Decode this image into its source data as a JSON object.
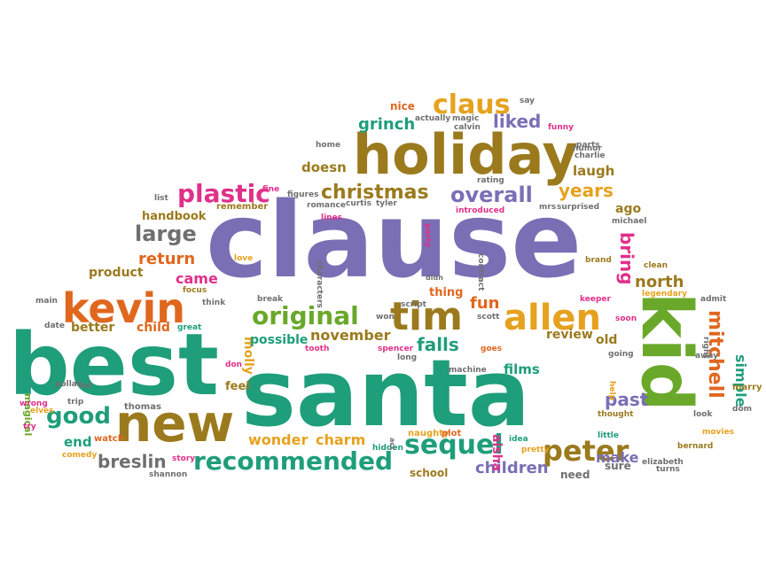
{
  "palette": {
    "purple": "#7a6fb5",
    "teal": "#1e9e7a",
    "olive": "#9b7a1e",
    "orange": "#e0671e",
    "pink": "#e0308a",
    "green": "#6aa82a",
    "gold": "#e6a21e",
    "gray": "#6f6f6f",
    "blue": "#2f8fb5"
  },
  "words": [
    {
      "text": "clause",
      "weight": 100,
      "color": "purple"
    },
    {
      "text": "santa",
      "weight": 95,
      "color": "teal"
    },
    {
      "text": "best",
      "weight": 90,
      "color": "teal"
    },
    {
      "text": "kid",
      "weight": 80,
      "color": "green"
    },
    {
      "text": "holiday",
      "weight": 62,
      "color": "olive"
    },
    {
      "text": "new",
      "weight": 60,
      "color": "olive"
    },
    {
      "text": "kevin",
      "weight": 50,
      "color": "orange"
    },
    {
      "text": "allen",
      "weight": 44,
      "color": "gold"
    },
    {
      "text": "tim",
      "weight": 44,
      "color": "olive"
    },
    {
      "text": "sequel",
      "weight": 34,
      "color": "teal"
    },
    {
      "text": "peter",
      "weight": 34,
      "color": "olive"
    },
    {
      "text": "recommended",
      "weight": 33,
      "color": "teal"
    },
    {
      "text": "original",
      "weight": 30,
      "color": "green"
    },
    {
      "text": "plastic",
      "weight": 30,
      "color": "pink"
    },
    {
      "text": "claus",
      "weight": 29,
      "color": "gold"
    },
    {
      "text": "good",
      "weight": 28,
      "color": "teal"
    },
    {
      "text": "christmas",
      "weight": 26,
      "color": "olive"
    },
    {
      "text": "overall",
      "weight": 26,
      "color": "purple"
    },
    {
      "text": "mitchell",
      "weight": 26,
      "color": "orange"
    },
    {
      "text": "large",
      "weight": 26,
      "color": "gray"
    },
    {
      "text": "years",
      "weight": 24,
      "color": "gold"
    },
    {
      "text": "bring",
      "weight": 23,
      "color": "pink"
    },
    {
      "text": "liked",
      "weight": 22,
      "color": "purple"
    },
    {
      "text": "breslin",
      "weight": 22,
      "color": "gray"
    },
    {
      "text": "north",
      "weight": 22,
      "color": "olive"
    },
    {
      "text": "falls",
      "weight": 21,
      "color": "teal"
    },
    {
      "text": "return",
      "weight": 21,
      "color": "orange"
    },
    {
      "text": "past",
      "weight": 21,
      "color": "purple"
    },
    {
      "text": "grinch",
      "weight": 19,
      "color": "teal"
    },
    {
      "text": "fun",
      "weight": 19,
      "color": "orange"
    },
    {
      "text": "children",
      "weight": 19,
      "color": "purple"
    },
    {
      "text": "wonder",
      "weight": 18,
      "color": "gold"
    },
    {
      "text": "charm",
      "weight": 18,
      "color": "gold"
    },
    {
      "text": "make",
      "weight": 18,
      "color": "purple"
    },
    {
      "text": "simple",
      "weight": 17,
      "color": "teal"
    },
    {
      "text": "november",
      "weight": 17,
      "color": "olive"
    },
    {
      "text": "aisha",
      "weight": 16,
      "color": "pink"
    },
    {
      "text": "doesn",
      "weight": 16,
      "color": "olive"
    },
    {
      "text": "laugh",
      "weight": 16,
      "color": "olive"
    },
    {
      "text": "came",
      "weight": 16,
      "color": "pink"
    },
    {
      "text": "end",
      "weight": 16,
      "color": "teal"
    },
    {
      "text": "molly",
      "weight": 15,
      "color": "gold"
    },
    {
      "text": "child",
      "weight": 15,
      "color": "orange"
    },
    {
      "text": "better",
      "weight": 15,
      "color": "olive"
    },
    {
      "text": "product",
      "weight": 15,
      "color": "olive"
    },
    {
      "text": "handbook",
      "weight": 15,
      "color": "olive"
    },
    {
      "text": "possible",
      "weight": 15,
      "color": "teal"
    },
    {
      "text": "films",
      "weight": 15,
      "color": "teal"
    },
    {
      "text": "review",
      "weight": 15,
      "color": "olive"
    },
    {
      "text": "old",
      "weight": 15,
      "color": "olive"
    },
    {
      "text": "ago",
      "weight": 14,
      "color": "olive"
    },
    {
      "text": "thing",
      "weight": 14,
      "color": "orange"
    },
    {
      "text": "school",
      "weight": 14,
      "color": "olive"
    },
    {
      "text": "feel",
      "weight": 14,
      "color": "olive"
    },
    {
      "text": "need",
      "weight": 14,
      "color": "gray"
    },
    {
      "text": "sure",
      "weight": 14,
      "color": "gray"
    },
    {
      "text": "nice",
      "weight": 13,
      "color": "orange"
    },
    {
      "text": "watch",
      "weight": 12,
      "color": "orange"
    },
    {
      "text": "remember",
      "weight": 12,
      "color": "olive"
    },
    {
      "text": "magical",
      "weight": 12,
      "color": "green"
    },
    {
      "text": "marry",
      "weight": 12,
      "color": "olive"
    },
    {
      "text": "thomas",
      "weight": 11,
      "color": "gray"
    },
    {
      "text": "naughty",
      "weight": 11,
      "color": "gold"
    },
    {
      "text": "plot",
      "weight": 11,
      "color": "orange"
    },
    {
      "text": "think",
      "weight": 11,
      "color": "gray"
    },
    {
      "text": "break",
      "weight": 11,
      "color": "gray"
    },
    {
      "text": "legendary",
      "weight": 11,
      "color": "gold"
    },
    {
      "text": "great",
      "weight": 11,
      "color": "teal"
    },
    {
      "text": "clean",
      "weight": 11,
      "color": "olive"
    },
    {
      "text": "brand",
      "weight": 11,
      "color": "olive"
    },
    {
      "text": "thought",
      "weight": 11,
      "color": "olive"
    },
    {
      "text": "bernard",
      "weight": 11,
      "color": "olive"
    },
    {
      "text": "pretty",
      "weight": 11,
      "color": "gold"
    },
    {
      "text": "turns",
      "weight": 11,
      "color": "gray"
    },
    {
      "text": "focus",
      "weight": 11,
      "color": "olive"
    },
    {
      "text": "comedy",
      "weight": 10,
      "color": "gold"
    },
    {
      "text": "story",
      "weight": 10,
      "color": "pink"
    },
    {
      "text": "shannon",
      "weight": 10,
      "color": "gray"
    },
    {
      "text": "hidden",
      "weight": 10,
      "color": "teal"
    },
    {
      "text": "little",
      "weight": 10,
      "color": "teal"
    },
    {
      "text": "movies",
      "weight": 10,
      "color": "gold"
    },
    {
      "text": "spencer",
      "weight": 10,
      "color": "pink"
    },
    {
      "text": "machine",
      "weight": 10,
      "color": "gray"
    },
    {
      "text": "idea",
      "weight": 10,
      "color": "teal"
    },
    {
      "text": "elizabeth",
      "weight": 10,
      "color": "gray"
    },
    {
      "text": "pollak",
      "weight": 10,
      "color": "gray"
    },
    {
      "text": "lot",
      "weight": 10,
      "color": "gray"
    },
    {
      "text": "trip",
      "weight": 10,
      "color": "gray"
    },
    {
      "text": "elves",
      "weight": 10,
      "color": "gold"
    },
    {
      "text": "try",
      "weight": 10,
      "color": "pink"
    },
    {
      "text": "wrong",
      "weight": 10,
      "color": "pink"
    },
    {
      "text": "main",
      "weight": 10,
      "color": "gray"
    },
    {
      "text": "date",
      "weight": 10,
      "color": "gray"
    },
    {
      "text": "love",
      "weight": 10,
      "color": "gold"
    },
    {
      "text": "don",
      "weight": 10,
      "color": "pink"
    },
    {
      "text": "tooth",
      "weight": 10,
      "color": "pink"
    },
    {
      "text": "long",
      "weight": 10,
      "color": "gray"
    },
    {
      "text": "won",
      "weight": 10,
      "color": "gray"
    },
    {
      "text": "scott",
      "weight": 10,
      "color": "gray"
    },
    {
      "text": "script",
      "weight": 10,
      "color": "gray"
    },
    {
      "text": "didn",
      "weight": 10,
      "color": "gray"
    },
    {
      "text": "act",
      "weight": 10,
      "color": "gray"
    },
    {
      "text": "goes",
      "weight": 10,
      "color": "orange"
    },
    {
      "text": "keeper",
      "weight": 10,
      "color": "pink"
    },
    {
      "text": "soon",
      "weight": 10,
      "color": "pink"
    },
    {
      "text": "admit",
      "weight": 10,
      "color": "gray"
    },
    {
      "text": "right",
      "weight": 10,
      "color": "gray"
    },
    {
      "text": "away",
      "weight": 10,
      "color": "gray"
    },
    {
      "text": "look",
      "weight": 10,
      "color": "gray"
    },
    {
      "text": "dom",
      "weight": 10,
      "color": "gray"
    },
    {
      "text": "going",
      "weight": 10,
      "color": "gray"
    },
    {
      "text": "help",
      "weight": 10,
      "color": "gold"
    },
    {
      "text": "fine",
      "weight": 10,
      "color": "pink"
    },
    {
      "text": "figures",
      "weight": 10,
      "color": "gray"
    },
    {
      "text": "romance",
      "weight": 10,
      "color": "gray"
    },
    {
      "text": "curtis",
      "weight": 10,
      "color": "gray"
    },
    {
      "text": "tyler",
      "weight": 10,
      "color": "gray"
    },
    {
      "text": "lines",
      "weight": 10,
      "color": "pink"
    },
    {
      "text": "characters",
      "weight": 10,
      "color": "gray"
    },
    {
      "text": "party",
      "weight": 10,
      "color": "pink"
    },
    {
      "text": "introduced",
      "weight": 10,
      "color": "pink"
    },
    {
      "text": "contract",
      "weight": 10,
      "color": "gray"
    },
    {
      "text": "rating",
      "weight": 10,
      "color": "gray"
    },
    {
      "text": "mrs",
      "weight": 10,
      "color": "gray"
    },
    {
      "text": "surprised",
      "weight": 10,
      "color": "gray"
    },
    {
      "text": "michael",
      "weight": 10,
      "color": "gray"
    },
    {
      "text": "humor",
      "weight": 10,
      "color": "gray"
    },
    {
      "text": "parts",
      "weight": 10,
      "color": "gray"
    },
    {
      "text": "charlie",
      "weight": 10,
      "color": "gray"
    },
    {
      "text": "funny",
      "weight": 10,
      "color": "pink"
    },
    {
      "text": "say",
      "weight": 10,
      "color": "gray"
    },
    {
      "text": "actually",
      "weight": 10,
      "color": "gray"
    },
    {
      "text": "magic",
      "weight": 10,
      "color": "gray"
    },
    {
      "text": "calvin",
      "weight": 10,
      "color": "gray"
    },
    {
      "text": "home",
      "weight": 10,
      "color": "gray"
    },
    {
      "text": "list",
      "weight": 10,
      "color": "gray"
    }
  ]
}
